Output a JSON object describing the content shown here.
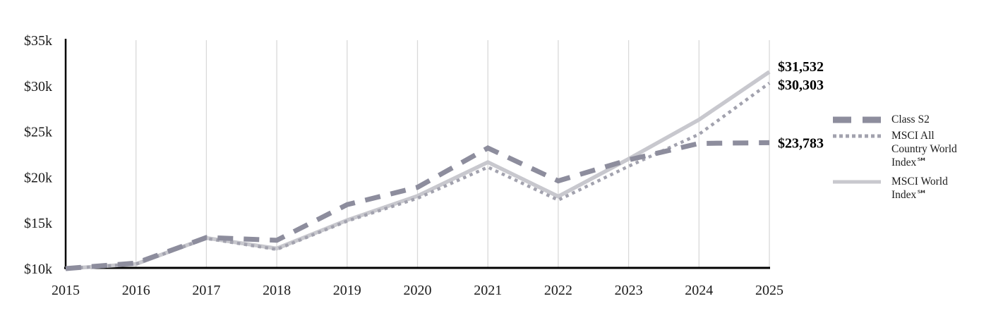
{
  "page": {
    "background": "#ffffff"
  },
  "chart_data": {
    "type": "line",
    "title": "",
    "x": [
      2015,
      2016,
      2017,
      2018,
      2019,
      2020,
      2021,
      2022,
      2023,
      2024,
      2025
    ],
    "x_tick_labels": [
      "2015",
      "2016",
      "2017",
      "2018",
      "2019",
      "2020",
      "2021",
      "2022",
      "2023",
      "2024",
      "2025"
    ],
    "y_ticks": [
      {
        "value": 35000,
        "label": "$35k"
      },
      {
        "value": 30000,
        "label": "$30k"
      },
      {
        "value": 25000,
        "label": "$25k"
      },
      {
        "value": 20000,
        "label": "$20k"
      },
      {
        "value": 15000,
        "label": "$15k"
      },
      {
        "value": 10000,
        "label": "$10k"
      }
    ],
    "ylim": [
      10000,
      35000
    ],
    "grid": "vertical-only",
    "legend_position": "right",
    "series": [
      {
        "name": "Class S2",
        "style": "dashed",
        "color": "#8d8d9d",
        "z": 3,
        "end_label": "$23,783",
        "values": [
          10000,
          10600,
          13400,
          13100,
          17000,
          18900,
          23200,
          19600,
          21900,
          23700,
          23783
        ]
      },
      {
        "name": "MSCI All Country World Index℠",
        "style": "dotted",
        "color": "#a2a2ae",
        "z": 2,
        "end_label": "$30,303",
        "values": [
          10000,
          10500,
          13300,
          12100,
          15200,
          17700,
          21100,
          17500,
          21200,
          24700,
          30303
        ]
      },
      {
        "name": "MSCI World Index℠",
        "style": "solid",
        "color": "#c8c8ce",
        "z": 1,
        "end_label": "$31,532",
        "values": [
          10000,
          10500,
          13350,
          12200,
          15300,
          17950,
          21650,
          17900,
          22000,
          26300,
          31532
        ]
      }
    ],
    "colors": {
      "gridline": "#d9d9d9",
      "axis": "#000000",
      "text": "#1b1b1b"
    }
  },
  "legend": {
    "items": [
      {
        "label": "Class S2",
        "style": "dashed"
      },
      {
        "label": "MSCI All Country World Index℠",
        "style": "dotted"
      },
      {
        "label": "MSCI World Index℠",
        "style": "solid"
      }
    ]
  }
}
